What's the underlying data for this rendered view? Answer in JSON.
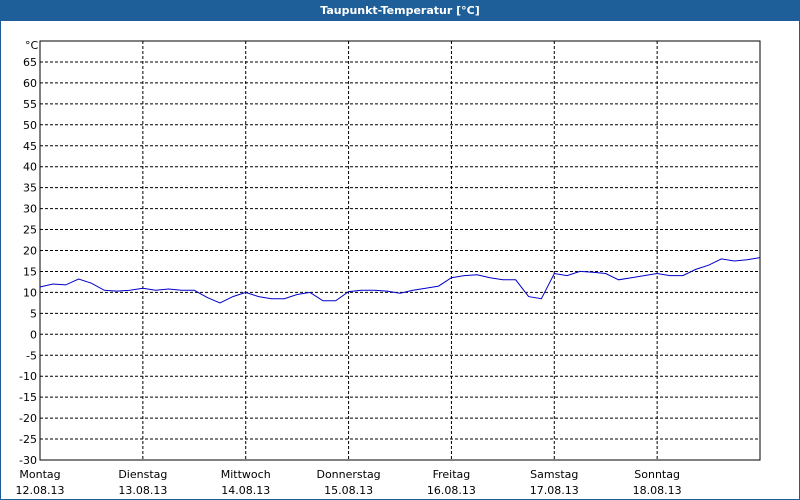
{
  "chart_data": {
    "type": "line",
    "title": "Taupunkt-Temperatur [°C]",
    "y_unit": "°C",
    "xlim": [
      0,
      7
    ],
    "xticks": [
      {
        "value": 0,
        "label": "Montag",
        "date": "12.08.13"
      },
      {
        "value": 1,
        "label": "Dienstag",
        "date": "13.08.13"
      },
      {
        "value": 2,
        "label": "Mittwoch",
        "date": "14.08.13"
      },
      {
        "value": 3,
        "label": "Donnerstag",
        "date": "15.08.13"
      },
      {
        "value": 4,
        "label": "Freitag",
        "date": "16.08.13"
      },
      {
        "value": 5,
        "label": "Samstag",
        "date": "17.08.13"
      },
      {
        "value": 6,
        "label": "Sonntag",
        "date": "18.08.13"
      }
    ],
    "ylim": [
      -30,
      70
    ],
    "yticks": [
      -30,
      -25,
      -20,
      -15,
      -10,
      -5,
      0,
      5,
      10,
      15,
      20,
      25,
      30,
      35,
      40,
      45,
      50,
      55,
      60,
      65
    ],
    "grid": true,
    "series": [
      {
        "name": "Taupunkt",
        "color": "#0000c8",
        "x": [
          0,
          0.125,
          0.25,
          0.375,
          0.5,
          0.625,
          0.75,
          0.875,
          1,
          1.125,
          1.25,
          1.375,
          1.5,
          1.625,
          1.75,
          1.875,
          2,
          2.125,
          2.25,
          2.375,
          2.5,
          2.625,
          2.75,
          2.875,
          3,
          3.125,
          3.25,
          3.375,
          3.5,
          3.625,
          3.75,
          3.875,
          4,
          4.125,
          4.25,
          4.375,
          4.5,
          4.625,
          4.75,
          4.875,
          5,
          5.125,
          5.25,
          5.375,
          5.5,
          5.625,
          5.75,
          5.875,
          6,
          6.125,
          6.25,
          6.375,
          6.5,
          6.625,
          6.75,
          6.875,
          7
        ],
        "values": [
          11.3,
          12,
          11.8,
          13.2,
          12.2,
          10.5,
          10.3,
          10.5,
          11,
          10.5,
          10.8,
          10.5,
          10.5,
          8.8,
          7.5,
          9,
          10,
          9,
          8.5,
          8.5,
          9.5,
          10,
          8,
          8,
          10.2,
          10.5,
          10.5,
          10.3,
          9.8,
          10.5,
          11,
          11.5,
          13.5,
          14,
          14.2,
          13.5,
          13,
          13,
          9,
          8.5,
          14.5,
          14,
          15,
          14.8,
          14.5,
          13,
          13.5,
          14,
          14.5,
          14,
          14,
          15.5,
          16.5,
          18,
          17.5,
          17.8,
          18.3
        ]
      }
    ]
  }
}
